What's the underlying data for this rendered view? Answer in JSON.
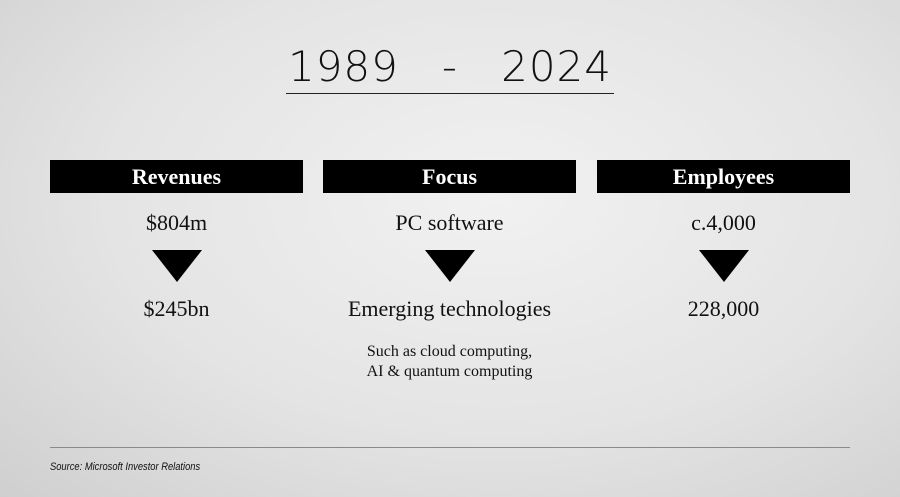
{
  "title": "1989   -   2024",
  "columns": [
    {
      "heading": "Revenues",
      "from": "$804m",
      "to": "$245bn"
    },
    {
      "heading": "Focus",
      "from": "PC software",
      "to": "Emerging technologies",
      "note": [
        "Such as cloud computing,",
        "AI & quantum computing"
      ]
    },
    {
      "heading": "Employees",
      "from": "c.4,000",
      "to": "228,000"
    }
  ],
  "source": "Source: Microsoft Investor Relations"
}
